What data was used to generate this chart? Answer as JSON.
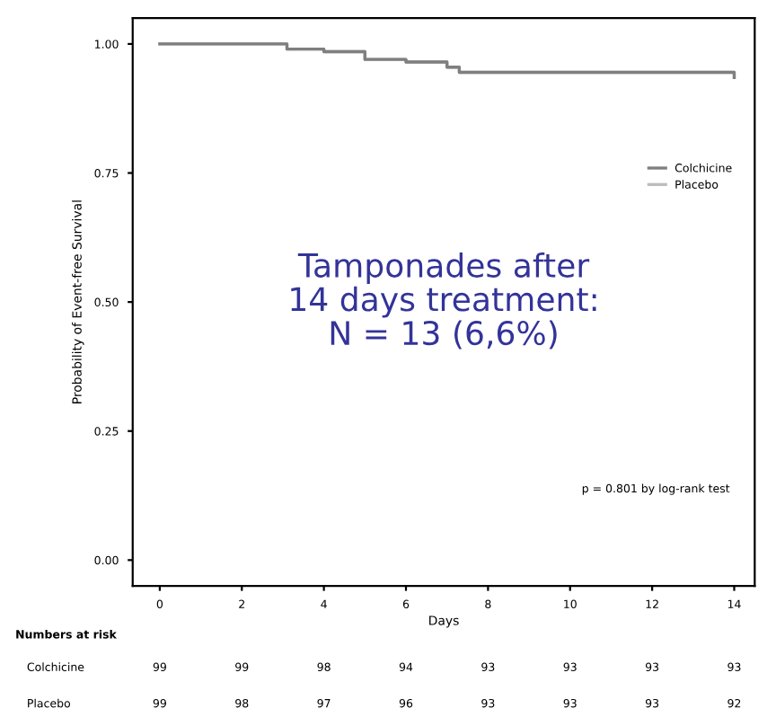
{
  "chart_data": {
    "type": "step",
    "x": [
      0,
      2,
      3.1,
      4,
      5,
      6,
      7,
      7.3,
      13.2,
      14
    ],
    "series": [
      {
        "name": "Colchicine",
        "color": "#7f7f7f",
        "values": [
          1.0,
          1.0,
          0.99,
          0.985,
          0.97,
          0.965,
          0.955,
          0.945,
          0.945,
          0.935
        ]
      },
      {
        "name": "Placebo",
        "color": "#bdbdbd",
        "values": [
          1.0,
          1.0,
          0.99,
          0.985,
          0.97,
          0.965,
          0.955,
          0.945,
          0.945,
          0.935
        ]
      }
    ],
    "xlabel": "Days",
    "ylabel": "Probability of Event-free Survival",
    "xlim": [
      -0.66,
      14.5
    ],
    "ylim": [
      -0.05,
      1.05
    ],
    "xticks": [
      0,
      2,
      4,
      6,
      8,
      10,
      12,
      14
    ],
    "yticks": [
      {
        "value": 0,
        "label": "0.00"
      },
      {
        "value": 0.25,
        "label": "0.25"
      },
      {
        "value": 0.5,
        "label": "0.50"
      },
      {
        "value": 0.75,
        "label": "0.75"
      },
      {
        "value": 1,
        "label": "1.00"
      }
    ],
    "legend": "right",
    "grid": false,
    "line_style": "solid",
    "annotations": [
      "Tamponades after\n14 days treatment:\nN = 13 (6,6%)",
      "p = 0.801 by log-rank test",
      "Numbers at risk",
      "Colchicine",
      "99",
      "99",
      "98",
      "94",
      "93",
      "93",
      "93",
      "93",
      "Placebo",
      "99",
      "98",
      "97",
      "96",
      "93",
      "93",
      "93",
      "92"
    ]
  }
}
